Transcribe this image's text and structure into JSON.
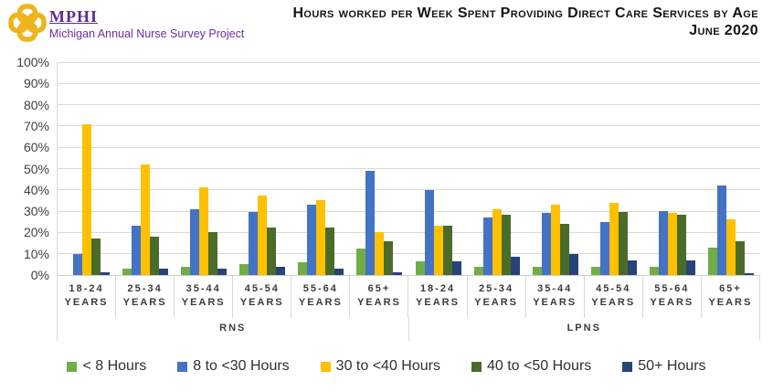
{
  "header": {
    "logo": {
      "name": "MPHI",
      "tagline": "Michigan Annual Nurse Survey Project"
    },
    "title_line1": "Hours worked per Week Spent Providing Direct Care Services by Age",
    "title_line2": "June 2020"
  },
  "colors": {
    "grid": "#D9D9D9",
    "axis_text": "#3B3B3B",
    "logo_purple": "#5C2D91",
    "logo_gold": "#EDB41C"
  },
  "chart_data": {
    "type": "bar",
    "title": "Hours worked per Week Spent Providing Direct Care Services by Age",
    "subtitle": "June 2020",
    "xlabel": "",
    "ylabel": "",
    "ylim": [
      0,
      100
    ],
    "ytick_step": 10,
    "ytick_format": "percent",
    "grid": true,
    "legend_position": "bottom",
    "category_suffix": "YEARS",
    "categories": [
      "18-24",
      "25-34",
      "35-44",
      "45-54",
      "55-64",
      "65+",
      "18-24",
      "25-34",
      "35-44",
      "45-54",
      "55-64",
      "65+"
    ],
    "sections": [
      {
        "label": "RNS",
        "span": 6
      },
      {
        "label": "LPNS",
        "span": 6
      }
    ],
    "series": [
      {
        "name": "< 8 Hours",
        "color": "#70AD47",
        "values": [
          0,
          3,
          4,
          5,
          6,
          12.5,
          6.5,
          4,
          4,
          4,
          4,
          13
        ]
      },
      {
        "name": "8 to <30 Hours",
        "color": "#4472C4",
        "values": [
          10,
          23,
          31,
          29.5,
          33,
          49,
          40,
          27,
          29,
          25,
          30,
          42
        ]
      },
      {
        "name": "30 to <40 Hours",
        "color": "#FFC000",
        "values": [
          71,
          52,
          41,
          37.5,
          35,
          20,
          23,
          31,
          33,
          34,
          29,
          26
        ]
      },
      {
        "name": "40 to <50 Hours",
        "color": "#4A6C2B",
        "values": [
          17,
          18,
          20,
          22.5,
          22.5,
          16,
          23,
          28.5,
          24,
          29.5,
          28.5,
          16
        ]
      },
      {
        "name": "50+ Hours",
        "color": "#264478",
        "values": [
          1.5,
          3,
          3,
          4,
          3,
          1.5,
          6.5,
          8.5,
          10,
          7,
          7,
          1
        ]
      }
    ]
  }
}
